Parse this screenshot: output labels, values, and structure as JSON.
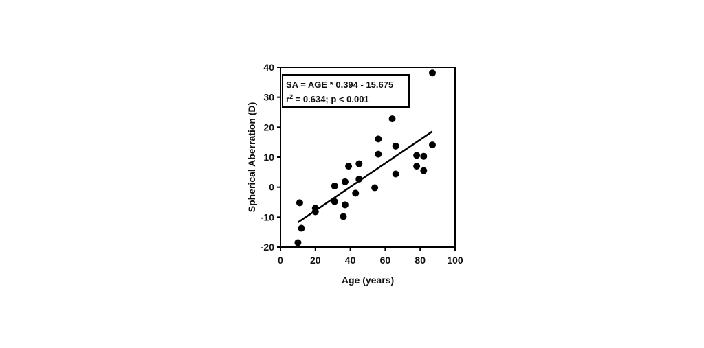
{
  "chart_data": {
    "type": "scatter",
    "title": "",
    "xlabel": "Age (years)",
    "ylabel": "Spherical Aberration (D)",
    "xlim": [
      0,
      100
    ],
    "ylim": [
      -20,
      40
    ],
    "xticks": [
      0,
      20,
      40,
      60,
      80,
      100
    ],
    "yticks": [
      -20,
      -10,
      0,
      10,
      20,
      30,
      40
    ],
    "grid": false,
    "annotation": {
      "line1": "SA = AGE * 0.394 - 15.675",
      "line2_prefix": "r",
      "line2_sup": "2",
      "line2_rest": " = 0.634; p < 0.001"
    },
    "regression": {
      "slope": 0.394,
      "intercept": -15.675,
      "x_range": [
        10,
        87
      ]
    },
    "series": [
      {
        "points": [
          {
            "x": 10,
            "y": -18.5
          },
          {
            "x": 11,
            "y": -5.2
          },
          {
            "x": 12,
            "y": -13.7
          },
          {
            "x": 20,
            "y": -7.0
          },
          {
            "x": 20,
            "y": -8.2
          },
          {
            "x": 31,
            "y": 0.4
          },
          {
            "x": 31,
            "y": -4.8
          },
          {
            "x": 36,
            "y": -9.8
          },
          {
            "x": 37,
            "y": 1.8
          },
          {
            "x": 37,
            "y": -5.9
          },
          {
            "x": 39,
            "y": 7.0
          },
          {
            "x": 43,
            "y": -2.0
          },
          {
            "x": 45,
            "y": 7.8
          },
          {
            "x": 45,
            "y": 2.7
          },
          {
            "x": 54,
            "y": -0.2
          },
          {
            "x": 56,
            "y": 16.1
          },
          {
            "x": 56,
            "y": 11.0
          },
          {
            "x": 64,
            "y": 22.8
          },
          {
            "x": 66,
            "y": 13.7
          },
          {
            "x": 66,
            "y": 4.4
          },
          {
            "x": 78,
            "y": 10.6
          },
          {
            "x": 78,
            "y": 7.0
          },
          {
            "x": 82,
            "y": 10.3
          },
          {
            "x": 82,
            "y": 5.5
          },
          {
            "x": 87,
            "y": 14.1
          },
          {
            "x": 87,
            "y": 38.1
          }
        ]
      }
    ]
  }
}
